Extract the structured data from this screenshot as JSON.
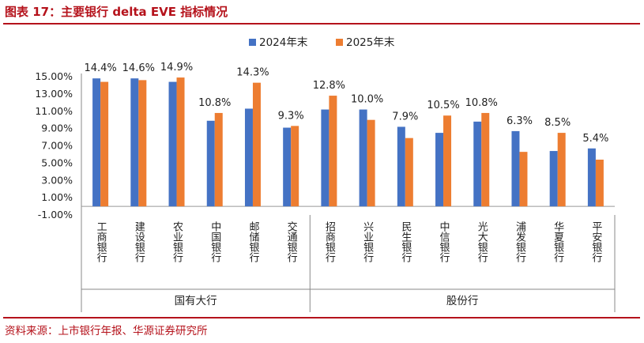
{
  "title": "图表 17：主要银行 delta EVE 指标情况",
  "source": "资料来源：上市银行年报、华源证券研究所",
  "colors": {
    "accent": "#b5121b",
    "series_2024": "#4472c4",
    "series_2025": "#ed7d31"
  },
  "chart_data": {
    "type": "bar",
    "categories": [
      "工商银行",
      "建设银行",
      "农业银行",
      "中国银行",
      "邮储银行",
      "交通银行",
      "招商银行",
      "兴业银行",
      "民生银行",
      "中信银行",
      "光大银行",
      "浦发银行",
      "华夏银行",
      "平安银行"
    ],
    "groups": [
      {
        "label": "国有大行",
        "start": 0,
        "end": 5
      },
      {
        "label": "股份行",
        "start": 6,
        "end": 13
      }
    ],
    "series": [
      {
        "name": "2024年末",
        "values": [
          14.8,
          14.8,
          14.4,
          9.9,
          11.3,
          9.1,
          11.2,
          11.2,
          9.2,
          8.5,
          9.8,
          8.7,
          6.4,
          6.7
        ]
      },
      {
        "name": "2025年末",
        "values": [
          14.4,
          14.6,
          14.9,
          10.8,
          14.3,
          9.3,
          12.8,
          10.0,
          7.9,
          10.5,
          10.8,
          6.3,
          8.5,
          5.4
        ]
      }
    ],
    "data_labels": [
      "14.4%",
      "14.6%",
      "14.9%",
      "10.8%",
      "14.3%",
      "9.3%",
      "12.8%",
      "10.0%",
      "7.9%",
      "10.5%",
      "10.8%",
      "6.3%",
      "8.5%",
      "5.4%"
    ],
    "yticks": [
      "-1.00%",
      "1.00%",
      "3.00%",
      "5.00%",
      "7.00%",
      "9.00%",
      "11.00%",
      "13.00%",
      "15.00%"
    ],
    "ylim": [
      -1,
      15
    ],
    "grid": false,
    "legend": "top-center"
  }
}
